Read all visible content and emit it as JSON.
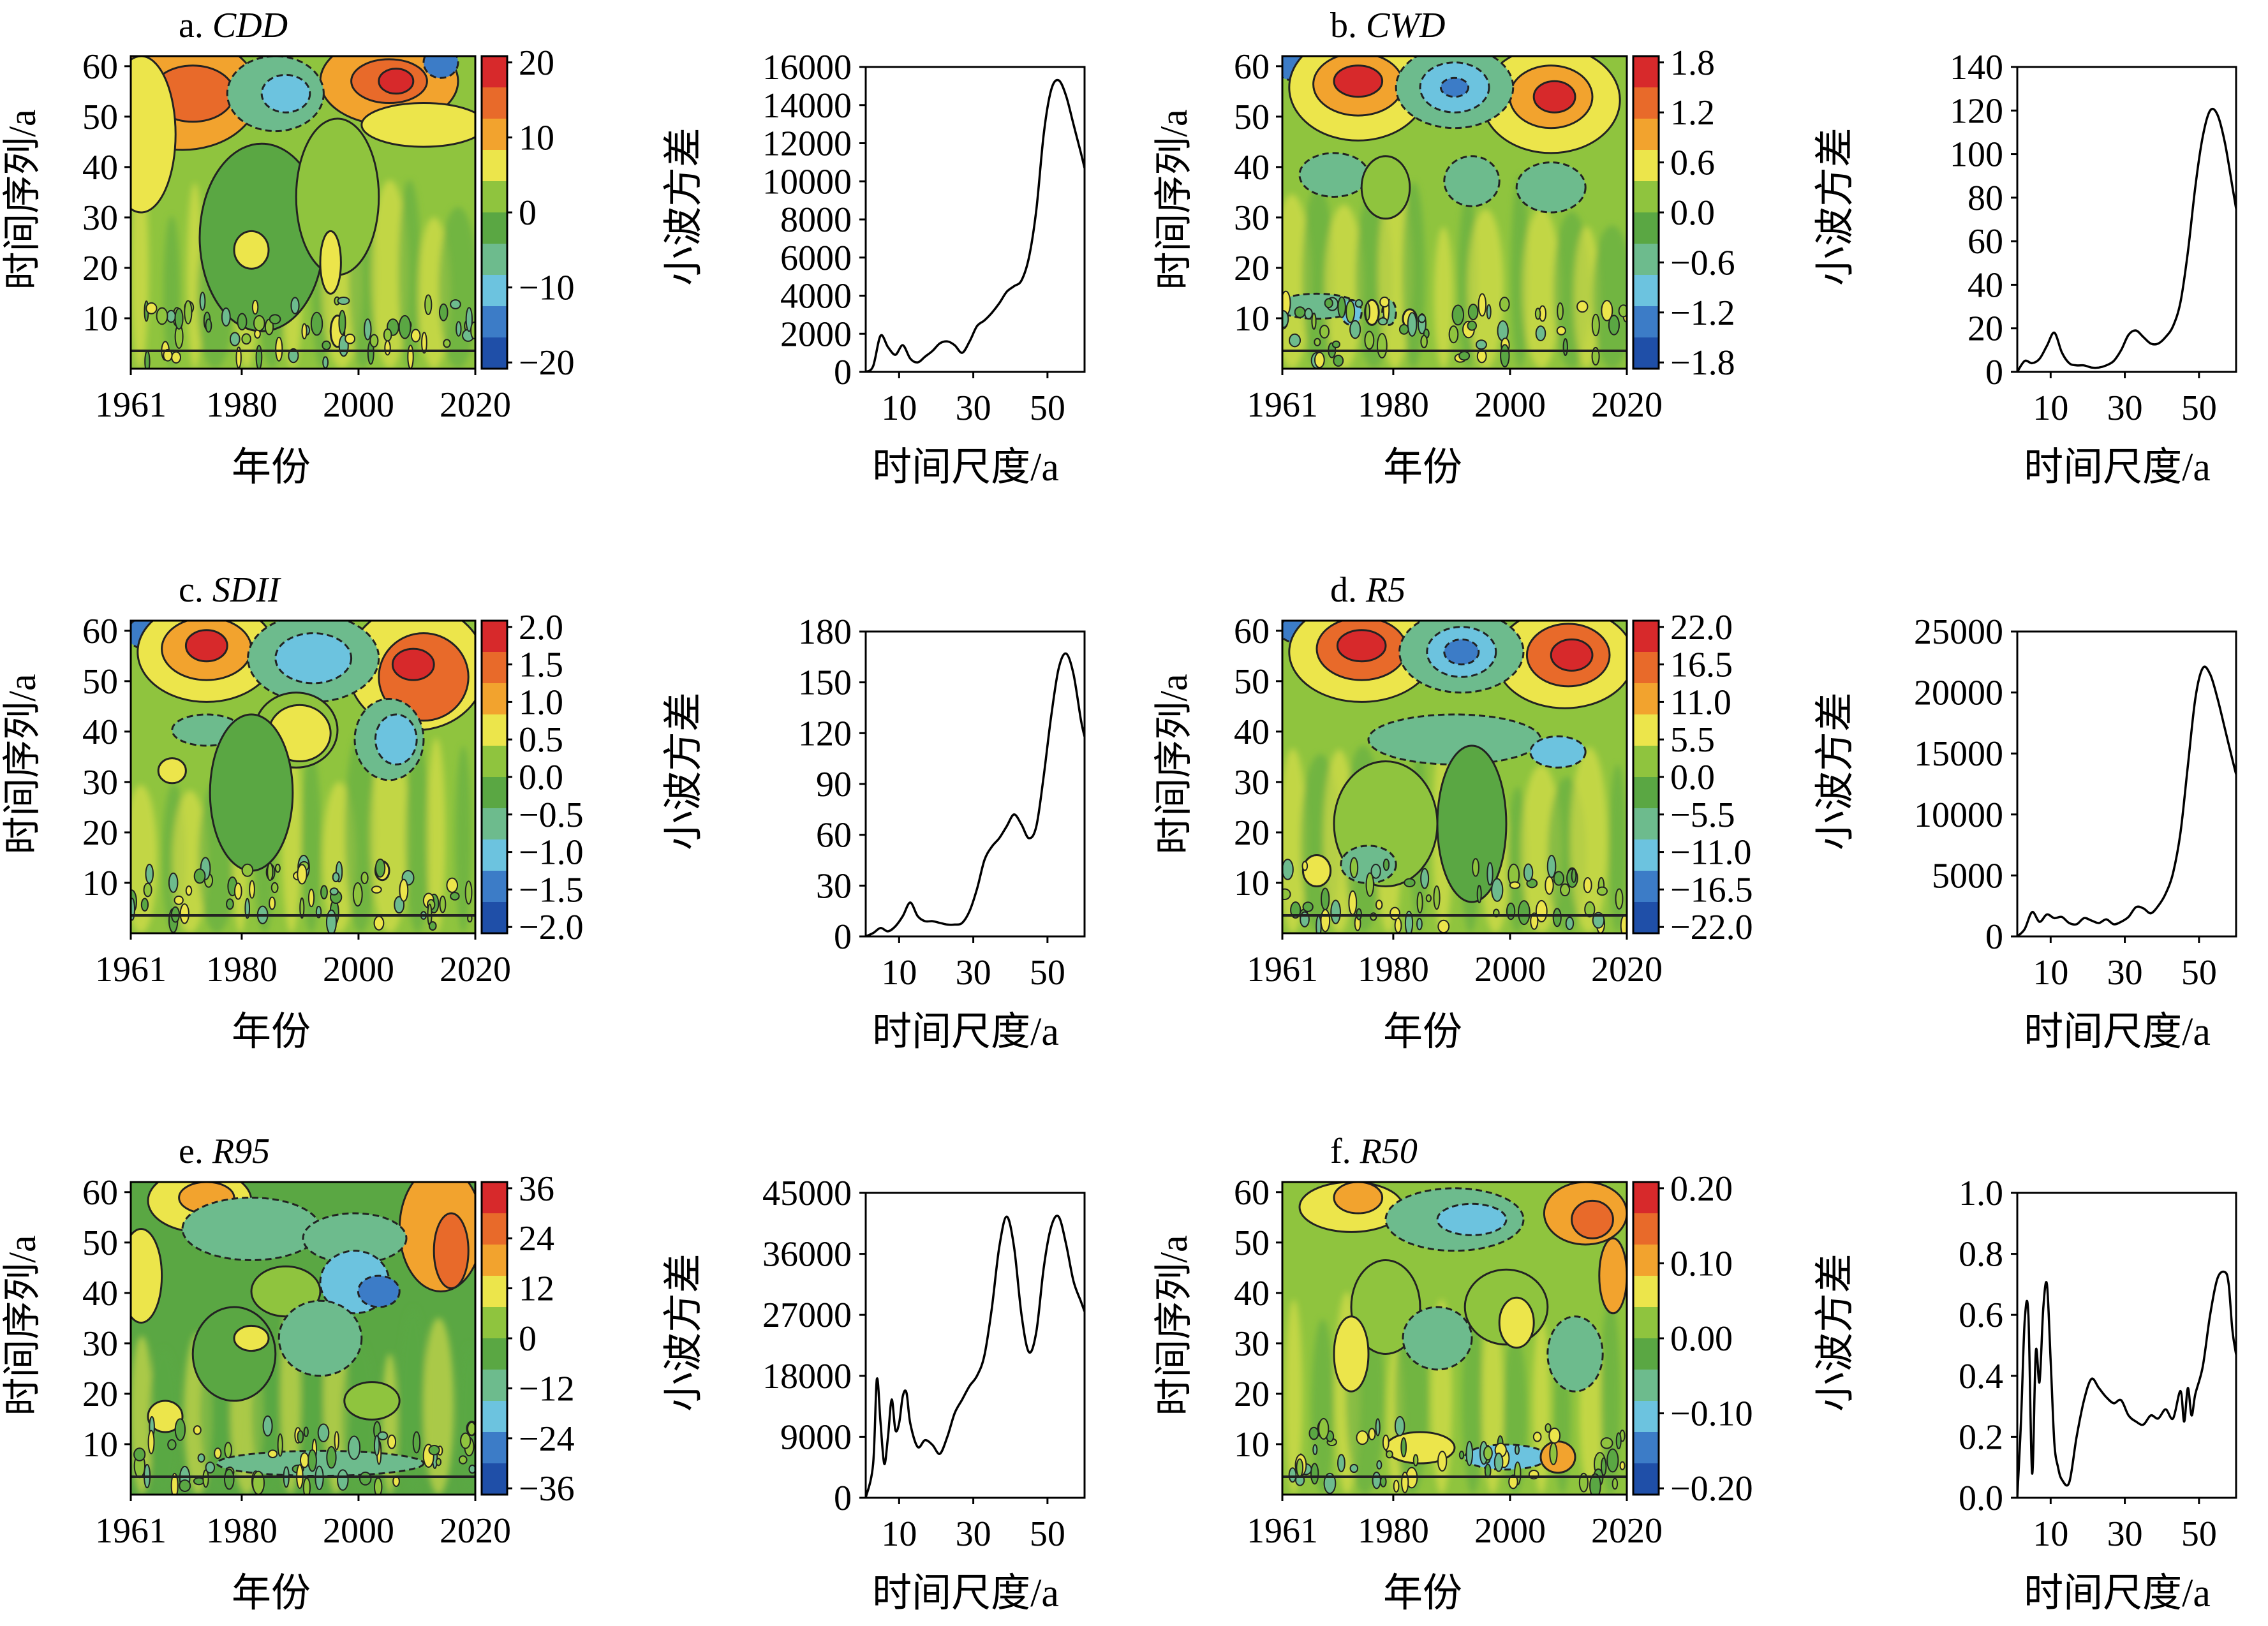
{
  "figure": {
    "colors": {
      "contour_palette": [
        "#1f4fa8",
        "#3c7cc7",
        "#6cc3df",
        "#6dbb8d",
        "#5aa743",
        "#8fc43e",
        "#ece54b",
        "#f2a32e",
        "#e86a2a",
        "#d7292b"
      ],
      "line": "#000000",
      "contour_line": "#222222"
    },
    "panels": [
      {
        "label_prefix": "a.",
        "label_name": "CDD",
        "wavelet": {
          "xlabel": "年份",
          "ylabel": "时间序列/a",
          "xticks": [
            "1961",
            "1980",
            "2000",
            "2020"
          ],
          "yticks": [
            "10",
            "20",
            "30",
            "40",
            "50",
            "60"
          ],
          "colorbar_ticks": [
            "20",
            "10",
            "0",
            "−10",
            "−20"
          ]
        },
        "chart_data": {
          "type": "line",
          "title": "",
          "xlabel": "时间尺度/a",
          "ylabel": "小波方差",
          "xlim": [
            1,
            60
          ],
          "ylim": [
            0,
            16000
          ],
          "yticks": [
            "0",
            "2000",
            "4000",
            "6000",
            "8000",
            "10000",
            "12000",
            "14000",
            "16000"
          ],
          "xticks": [
            "10",
            "30",
            "50"
          ],
          "x": [
            1,
            3,
            5,
            7,
            9,
            11,
            13,
            15,
            17,
            19,
            21,
            23,
            25,
            27,
            29,
            31,
            33,
            35,
            37,
            39,
            41,
            43,
            45,
            47,
            49,
            51,
            53,
            55,
            57,
            59,
            60
          ],
          "y": [
            0,
            300,
            1900,
            1300,
            900,
            1400,
            700,
            500,
            800,
            1100,
            1500,
            1600,
            1400,
            1000,
            1600,
            2400,
            2700,
            3100,
            3600,
            4200,
            4500,
            4800,
            6000,
            8500,
            12500,
            14800,
            15300,
            14500,
            13000,
            11500,
            10700
          ]
        }
      },
      {
        "label_prefix": "b.",
        "label_name": "CWD",
        "wavelet": {
          "xlabel": "年份",
          "ylabel": "时间序列/a",
          "xticks": [
            "1961",
            "1980",
            "2000",
            "2020"
          ],
          "yticks": [
            "10",
            "20",
            "30",
            "40",
            "50",
            "60"
          ],
          "colorbar_ticks": [
            "1.8",
            "1.2",
            "0.6",
            "0.0",
            "−0.6",
            "−1.2",
            "−1.8"
          ]
        },
        "chart_data": {
          "type": "line",
          "title": "",
          "xlabel": "时间尺度/a",
          "ylabel": "小波方差",
          "xlim": [
            1,
            60
          ],
          "ylim": [
            0,
            140
          ],
          "yticks": [
            "0",
            "20",
            "40",
            "60",
            "80",
            "100",
            "120",
            "140"
          ],
          "xticks": [
            "10",
            "30",
            "50"
          ],
          "x": [
            1,
            3,
            5,
            7,
            9,
            11,
            13,
            15,
            17,
            19,
            21,
            23,
            25,
            27,
            29,
            31,
            33,
            35,
            37,
            39,
            41,
            43,
            45,
            47,
            49,
            51,
            53,
            55,
            57,
            59,
            60
          ],
          "y": [
            0,
            5,
            4,
            6,
            12,
            18,
            9,
            4,
            3,
            3,
            2,
            2,
            3,
            5,
            10,
            17,
            19,
            16,
            13,
            13,
            16,
            21,
            32,
            55,
            85,
            108,
            120,
            118,
            105,
            85,
            75
          ]
        }
      },
      {
        "label_prefix": "c.",
        "label_name": "SDII",
        "wavelet": {
          "xlabel": "年份",
          "ylabel": "时间序列/a",
          "xticks": [
            "1961",
            "1980",
            "2000",
            "2020"
          ],
          "yticks": [
            "10",
            "20",
            "30",
            "40",
            "50",
            "60"
          ],
          "colorbar_ticks": [
            "2.0",
            "1.5",
            "1.0",
            "0.5",
            "0.0",
            "−0.5",
            "−1.0",
            "−1.5",
            "−2.0"
          ]
        },
        "chart_data": {
          "type": "line",
          "title": "",
          "xlabel": "时间尺度/a",
          "ylabel": "小波方差",
          "xlim": [
            1,
            60
          ],
          "ylim": [
            0,
            180
          ],
          "yticks": [
            "0",
            "30",
            "60",
            "90",
            "120",
            "150",
            "180"
          ],
          "xticks": [
            "10",
            "30",
            "50"
          ],
          "x": [
            1,
            3,
            5,
            7,
            9,
            11,
            13,
            15,
            17,
            19,
            21,
            23,
            25,
            27,
            29,
            31,
            33,
            35,
            37,
            39,
            41,
            43,
            45,
            47,
            49,
            51,
            53,
            55,
            57,
            59,
            60
          ],
          "y": [
            0,
            2,
            5,
            3,
            6,
            12,
            20,
            12,
            9,
            9,
            8,
            7,
            7,
            8,
            15,
            28,
            45,
            53,
            58,
            65,
            72,
            66,
            58,
            65,
            95,
            130,
            158,
            167,
            155,
            128,
            118
          ]
        }
      },
      {
        "label_prefix": "d.",
        "label_name": "R5",
        "wavelet": {
          "xlabel": "年份",
          "ylabel": "时间序列/a",
          "xticks": [
            "1961",
            "1980",
            "2000",
            "2020"
          ],
          "yticks": [
            "10",
            "20",
            "30",
            "40",
            "50",
            "60"
          ],
          "colorbar_ticks": [
            "22.0",
            "16.5",
            "11.0",
            "5.5",
            "0.0",
            "−5.5",
            "−11.0",
            "−16.5",
            "−22.0"
          ]
        },
        "chart_data": {
          "type": "line",
          "title": "",
          "xlabel": "时间尺度/a",
          "ylabel": "小波方差",
          "xlim": [
            1,
            60
          ],
          "ylim": [
            0,
            25000
          ],
          "yticks": [
            "0",
            "5000",
            "10000",
            "15000",
            "20000",
            "25000"
          ],
          "xticks": [
            "10",
            "30",
            "50"
          ],
          "x": [
            1,
            3,
            5,
            7,
            9,
            11,
            13,
            15,
            17,
            19,
            21,
            23,
            25,
            27,
            29,
            31,
            33,
            35,
            37,
            39,
            41,
            43,
            45,
            47,
            49,
            51,
            53,
            55,
            57,
            59,
            60
          ],
          "y": [
            0,
            600,
            2000,
            1200,
            1800,
            1500,
            1600,
            1100,
            1000,
            1500,
            1300,
            1100,
            1400,
            1000,
            1200,
            1600,
            2400,
            2300,
            1900,
            2500,
            3500,
            5200,
            8500,
            14000,
            19500,
            22000,
            21500,
            19500,
            17000,
            14500,
            13300
          ]
        }
      },
      {
        "label_prefix": "e.",
        "label_name": "R95",
        "wavelet": {
          "xlabel": "年份",
          "ylabel": "时间序列/a",
          "xticks": [
            "1961",
            "1980",
            "2000",
            "2020"
          ],
          "yticks": [
            "10",
            "20",
            "30",
            "40",
            "50",
            "60"
          ],
          "colorbar_ticks": [
            "36",
            "24",
            "12",
            "0",
            "−12",
            "−24",
            "−36"
          ]
        },
        "chart_data": {
          "type": "line",
          "title": "",
          "xlabel": "时间尺度/a",
          "ylabel": "小波方差",
          "xlim": [
            1,
            60
          ],
          "ylim": [
            0,
            45000
          ],
          "yticks": [
            "0",
            "9000",
            "18000",
            "27000",
            "36000",
            "45000"
          ],
          "xticks": [
            "10",
            "30",
            "50"
          ],
          "x": [
            1,
            3,
            4,
            5,
            6,
            7,
            8,
            9,
            10,
            11,
            12,
            13,
            15,
            17,
            19,
            21,
            23,
            25,
            27,
            29,
            31,
            33,
            35,
            37,
            39,
            41,
            43,
            45,
            47,
            49,
            51,
            53,
            55,
            57,
            59,
            60
          ],
          "y": [
            0,
            5000,
            17500,
            11000,
            5000,
            9000,
            14500,
            10000,
            11000,
            15000,
            15500,
            11000,
            7500,
            8500,
            7800,
            6500,
            9000,
            12500,
            14500,
            16500,
            18000,
            21000,
            28000,
            37000,
            41500,
            37000,
            27000,
            21500,
            24500,
            34000,
            40000,
            41500,
            37500,
            32000,
            29000,
            27500
          ]
        }
      },
      {
        "label_prefix": "f.",
        "label_name": "R50",
        "wavelet": {
          "xlabel": "年份",
          "ylabel": "时间序列/a",
          "xticks": [
            "1961",
            "1980",
            "2000",
            "2020"
          ],
          "yticks": [
            "10",
            "20",
            "30",
            "40",
            "50",
            "60"
          ],
          "colorbar_ticks": [
            "0.20",
            "0.10",
            "0.00",
            "−0.10",
            "−0.20"
          ]
        },
        "chart_data": {
          "type": "line",
          "title": "",
          "xlabel": "时间尺度/a",
          "ylabel": "小波方差",
          "xlim": [
            1,
            60
          ],
          "ylim": [
            0,
            1.0
          ],
          "yticks": [
            "0.0",
            "0.2",
            "0.4",
            "0.6",
            "0.8",
            "1.0"
          ],
          "xticks": [
            "10",
            "30",
            "50"
          ],
          "x": [
            1,
            2,
            3,
            4,
            5,
            6,
            7,
            8,
            9,
            10,
            11,
            12,
            13,
            15,
            17,
            19,
            21,
            23,
            25,
            27,
            29,
            31,
            33,
            35,
            37,
            39,
            41,
            43,
            45,
            46,
            47,
            48,
            49,
            51,
            53,
            55,
            57,
            58,
            59,
            60
          ],
          "y": [
            0,
            0.25,
            0.58,
            0.6,
            0.08,
            0.48,
            0.38,
            0.62,
            0.7,
            0.45,
            0.18,
            0.1,
            0.06,
            0.05,
            0.2,
            0.32,
            0.39,
            0.36,
            0.33,
            0.31,
            0.32,
            0.27,
            0.25,
            0.24,
            0.27,
            0.26,
            0.29,
            0.26,
            0.35,
            0.25,
            0.36,
            0.27,
            0.34,
            0.43,
            0.6,
            0.72,
            0.74,
            0.7,
            0.55,
            0.47
          ]
        }
      }
    ]
  }
}
